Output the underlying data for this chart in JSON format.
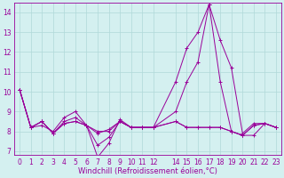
{
  "xlabel": "Windchill (Refroidissement éolien,°C)",
  "x": [
    0,
    1,
    2,
    3,
    4,
    5,
    6,
    7,
    8,
    9,
    10,
    11,
    12,
    14,
    15,
    16,
    17,
    18,
    19,
    20,
    21,
    22,
    23
  ],
  "lines": [
    [
      10.1,
      8.2,
      8.3,
      8.0,
      8.7,
      9.0,
      8.3,
      6.7,
      7.4,
      8.6,
      8.2,
      8.2,
      8.2,
      10.5,
      12.2,
      13.0,
      14.4,
      12.6,
      11.2,
      7.9,
      8.4,
      8.4,
      8.2
    ],
    [
      10.1,
      8.2,
      8.5,
      7.9,
      8.4,
      8.5,
      8.3,
      7.9,
      8.1,
      8.5,
      8.2,
      8.2,
      8.2,
      8.5,
      8.2,
      8.2,
      8.2,
      8.2,
      8.0,
      7.8,
      8.3,
      8.4,
      8.2
    ],
    [
      10.1,
      8.2,
      8.5,
      7.9,
      8.5,
      8.7,
      8.3,
      7.3,
      7.7,
      8.5,
      8.2,
      8.2,
      8.2,
      9.0,
      10.5,
      11.5,
      14.4,
      10.5,
      8.0,
      7.8,
      7.8,
      8.4,
      8.2
    ],
    [
      10.1,
      8.2,
      8.5,
      7.9,
      8.4,
      8.5,
      8.3,
      8.0,
      8.0,
      8.5,
      8.2,
      8.2,
      8.2,
      8.5,
      8.2,
      8.2,
      8.2,
      8.2,
      8.0,
      7.8,
      8.3,
      8.4,
      8.2
    ]
  ],
  "line_color": "#990099",
  "bg_color": "#d4f0f0",
  "grid_color": "#b0d8d8",
  "ylim": [
    6.8,
    14.5
  ],
  "yticks": [
    7,
    8,
    9,
    10,
    11,
    12,
    13,
    14
  ],
  "tick_fontsize": 5.5,
  "xlabel_fontsize": 6.0
}
